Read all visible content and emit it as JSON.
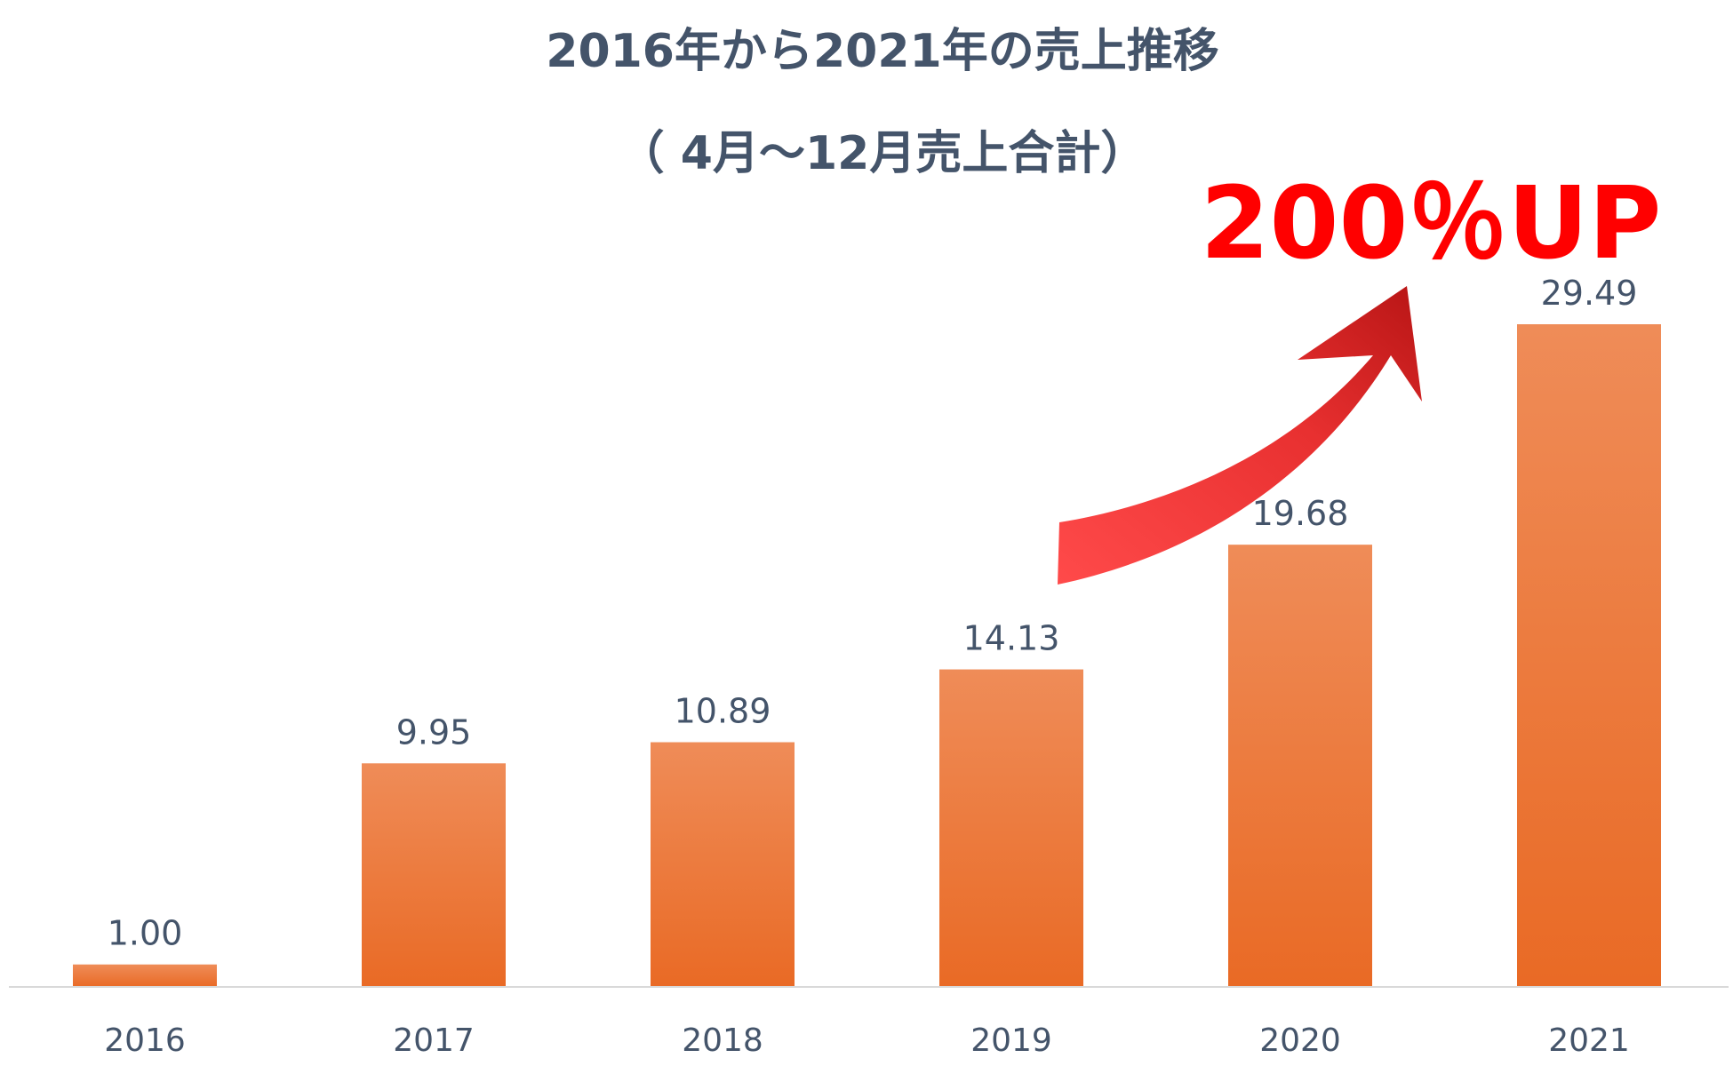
{
  "chart_data": {
    "type": "bar",
    "title": "2016年から2021年の売上推移",
    "subtitle": "（ 4月～12月売上合計）",
    "categories": [
      "2016",
      "2017",
      "2018",
      "2019",
      "2020",
      "2021"
    ],
    "values": [
      1.0,
      9.95,
      10.89,
      14.13,
      19.68,
      29.49
    ],
    "value_labels": [
      "1.00",
      "9.95",
      "10.89",
      "14.13",
      "19.68",
      "29.49"
    ],
    "xlabel": "",
    "ylabel": "",
    "ylim": [
      0,
      36
    ],
    "grid": false,
    "legend": "none",
    "annotation": "200％UP",
    "colors": {
      "bar_top": "#ef8c58",
      "bar_bottom": "#e96a25",
      "text": "#44546a",
      "annotation": "#ff0000",
      "arrow_light": "#ff4a4a",
      "arrow_dark": "#b81515",
      "axis": "#d9d9d9"
    }
  }
}
